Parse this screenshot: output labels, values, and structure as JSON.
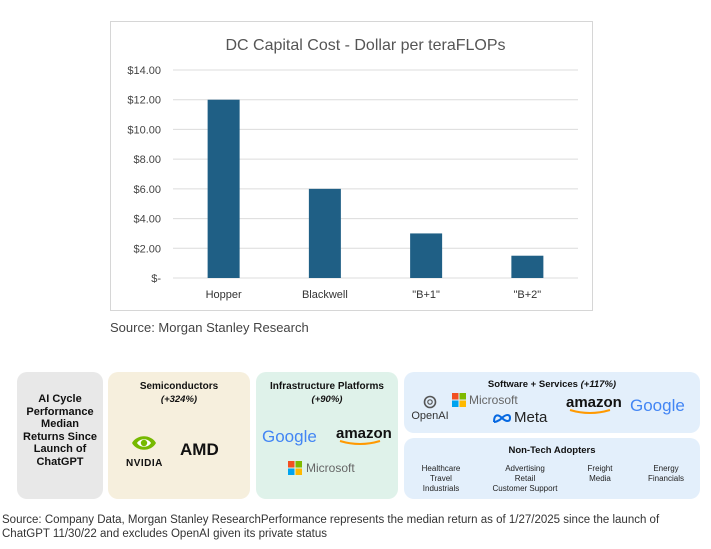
{
  "chart_data": {
    "type": "bar",
    "title": "DC Capital Cost - Dollar per teraFLOPs",
    "categories": [
      "Hopper",
      "Blackwell",
      "\"B+1\"",
      "\"B+2\""
    ],
    "values": [
      12.0,
      6.0,
      3.0,
      1.5
    ],
    "ylim": [
      0,
      14
    ],
    "yticks": [
      "$-",
      "$2.00",
      "$4.00",
      "$6.00",
      "$8.00",
      "$10.00",
      "$12.00",
      "$14.00"
    ],
    "grid": true,
    "bar_color": "#1f5f85",
    "xlabel": "",
    "ylabel": ""
  },
  "chart_source": "Source: Morgan Stanley Research",
  "panels": {
    "ai_cycle": {
      "title": "AI Cycle Performance Median Returns Since Launch of ChatGPT"
    },
    "semiconductors": {
      "title": "Semiconductors",
      "pct": "(+324%)",
      "logos": {
        "nvidia": "NVIDIA",
        "amd": "AMD"
      }
    },
    "infrastructure": {
      "title": "Infrastructure Platforms",
      "pct": "(+90%)",
      "logos": {
        "google": "Google",
        "amazon": "amazon",
        "microsoft": "Microsoft"
      }
    },
    "software": {
      "title": "Software + Services",
      "pct": "(+117%)",
      "logos": {
        "openai": "OpenAI",
        "microsoft": "Microsoft",
        "meta": "Meta",
        "amazon": "amazon",
        "google": "Google"
      }
    },
    "nontech": {
      "title": "Non-Tech Adopters",
      "groups": [
        [
          "Healthcare",
          "Travel",
          "Industrials"
        ],
        [
          "Advertising",
          "Retail",
          "Customer Support"
        ],
        [
          "Freight",
          "Media"
        ],
        [
          "Energy",
          "Financials"
        ]
      ]
    }
  },
  "footer_source": "Source: Company Data, Morgan Stanley ResearchPerformance represents the median return as of 1/27/2025 since the launch of ChatGPT 11/30/22 and excludes OpenAI given its private status",
  "colors": {
    "google_blue": "#4285F4",
    "google_red": "#EA4335",
    "google_yellow": "#FBBC05",
    "google_green": "#34A853",
    "ms_red": "#F25022",
    "ms_green": "#7FBA00",
    "ms_blue": "#00A4EF",
    "ms_yellow": "#FFB900",
    "nvidia_green": "#76B900",
    "meta_blue": "#0668E1",
    "amazon_orange": "#FF9900"
  }
}
